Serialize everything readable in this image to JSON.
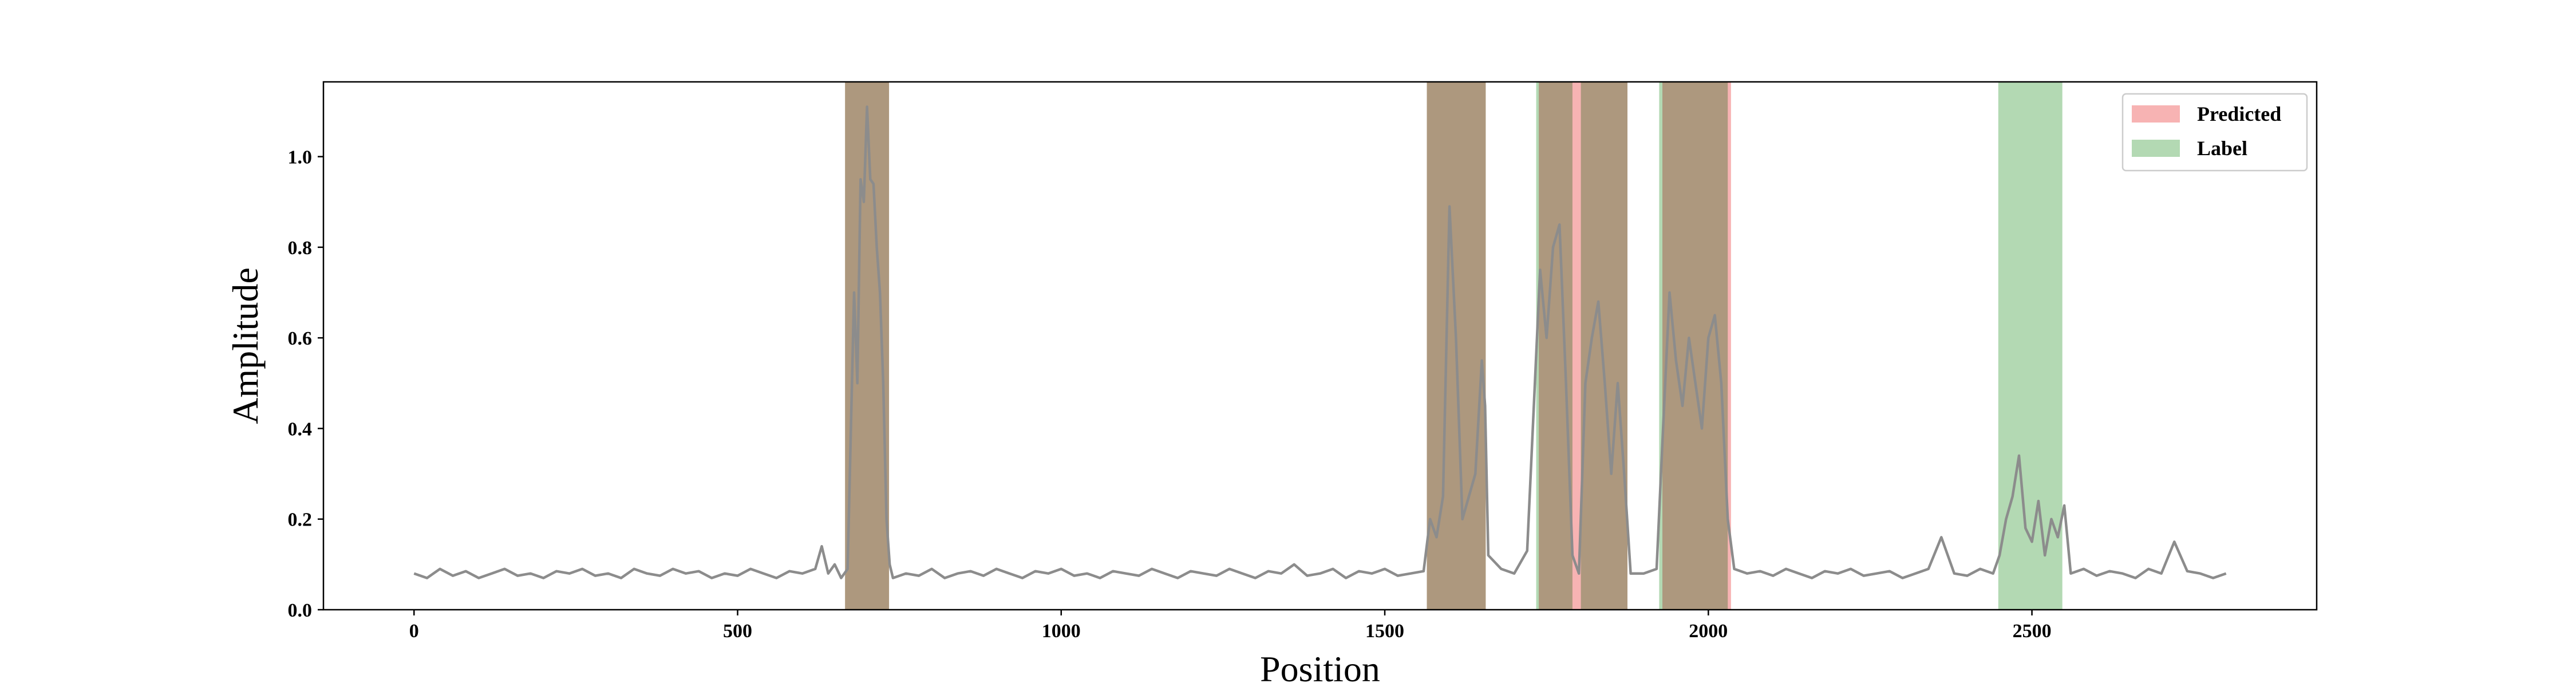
{
  "chart_data": {
    "type": "line",
    "xlabel": "Position",
    "ylabel": "Amplitude",
    "xlim": [
      -140,
      2940
    ],
    "ylim": [
      0,
      1.165
    ],
    "xticks": [
      0,
      500,
      1000,
      1500,
      2000,
      2500
    ],
    "yticks": [
      {
        "value": 0,
        "label": "0.0"
      },
      0.2,
      0.4,
      0.6,
      0.8,
      {
        "value": 1,
        "label": "1.0"
      }
    ],
    "legend": "upper right",
    "regions": [
      {
        "name": "Predicted",
        "color": "#f7b3b3",
        "spans": [
          [
            666,
            734
          ],
          [
            1565,
            1656
          ],
          [
            1738,
            1875
          ],
          [
            1929,
            2035
          ]
        ]
      },
      {
        "name": "Label",
        "color": "#b3d9b3",
        "spans": [
          [
            666,
            734
          ],
          [
            1565,
            1656
          ],
          [
            1734,
            1790
          ],
          [
            1803,
            1875
          ],
          [
            1924,
            2030
          ],
          [
            2448,
            2547
          ]
        ]
      }
    ],
    "series": [
      {
        "color": "#8c8c8c",
        "x": [
          0,
          20,
          40,
          60,
          80,
          100,
          120,
          140,
          160,
          180,
          200,
          220,
          240,
          260,
          280,
          300,
          320,
          340,
          360,
          380,
          400,
          420,
          440,
          460,
          480,
          500,
          520,
          540,
          560,
          580,
          600,
          620,
          630,
          640,
          650,
          660,
          670,
          680,
          685,
          690,
          695,
          700,
          705,
          710,
          715,
          720,
          725,
          730,
          735,
          740,
          760,
          780,
          800,
          820,
          840,
          860,
          880,
          900,
          920,
          940,
          960,
          980,
          1000,
          1020,
          1040,
          1060,
          1080,
          1100,
          1120,
          1140,
          1160,
          1180,
          1200,
          1220,
          1240,
          1260,
          1280,
          1300,
          1320,
          1340,
          1360,
          1380,
          1400,
          1420,
          1440,
          1460,
          1480,
          1500,
          1520,
          1540,
          1560,
          1570,
          1580,
          1590,
          1600,
          1610,
          1620,
          1630,
          1640,
          1650,
          1655,
          1660,
          1680,
          1700,
          1720,
          1740,
          1750,
          1760,
          1770,
          1780,
          1790,
          1800,
          1810,
          1820,
          1830,
          1840,
          1850,
          1860,
          1870,
          1880,
          1900,
          1920,
          1930,
          1940,
          1950,
          1960,
          1970,
          1980,
          1990,
          2000,
          2010,
          2020,
          2030,
          2040,
          2060,
          2080,
          2100,
          2120,
          2140,
          2160,
          2180,
          2200,
          2220,
          2240,
          2260,
          2280,
          2300,
          2320,
          2340,
          2360,
          2380,
          2400,
          2420,
          2440,
          2450,
          2460,
          2470,
          2480,
          2490,
          2500,
          2510,
          2520,
          2530,
          2540,
          2550,
          2560,
          2580,
          2600,
          2620,
          2640,
          2660,
          2680,
          2700,
          2720,
          2740,
          2760,
          2780,
          2800
        ],
        "values": [
          0.08,
          0.07,
          0.09,
          0.075,
          0.085,
          0.07,
          0.08,
          0.09,
          0.075,
          0.08,
          0.07,
          0.085,
          0.08,
          0.09,
          0.075,
          0.08,
          0.07,
          0.09,
          0.08,
          0.075,
          0.09,
          0.08,
          0.085,
          0.07,
          0.08,
          0.075,
          0.09,
          0.08,
          0.07,
          0.085,
          0.08,
          0.09,
          0.14,
          0.08,
          0.1,
          0.07,
          0.09,
          0.7,
          0.5,
          0.95,
          0.9,
          1.11,
          0.95,
          0.94,
          0.8,
          0.7,
          0.5,
          0.2,
          0.1,
          0.07,
          0.08,
          0.075,
          0.09,
          0.07,
          0.08,
          0.085,
          0.075,
          0.09,
          0.08,
          0.07,
          0.085,
          0.08,
          0.09,
          0.075,
          0.08,
          0.07,
          0.085,
          0.08,
          0.075,
          0.09,
          0.08,
          0.07,
          0.085,
          0.08,
          0.075,
          0.09,
          0.08,
          0.07,
          0.085,
          0.08,
          0.1,
          0.075,
          0.08,
          0.09,
          0.07,
          0.085,
          0.08,
          0.09,
          0.075,
          0.08,
          0.085,
          0.2,
          0.16,
          0.25,
          0.89,
          0.6,
          0.2,
          0.25,
          0.3,
          0.55,
          0.45,
          0.12,
          0.09,
          0.08,
          0.13,
          0.75,
          0.6,
          0.8,
          0.85,
          0.5,
          0.12,
          0.08,
          0.5,
          0.6,
          0.68,
          0.5,
          0.3,
          0.5,
          0.3,
          0.08,
          0.08,
          0.09,
          0.4,
          0.7,
          0.55,
          0.45,
          0.6,
          0.5,
          0.4,
          0.6,
          0.65,
          0.5,
          0.2,
          0.09,
          0.08,
          0.085,
          0.075,
          0.09,
          0.08,
          0.07,
          0.085,
          0.08,
          0.09,
          0.075,
          0.08,
          0.085,
          0.07,
          0.08,
          0.09,
          0.16,
          0.08,
          0.075,
          0.09,
          0.08,
          0.12,
          0.2,
          0.25,
          0.34,
          0.18,
          0.15,
          0.24,
          0.12,
          0.2,
          0.16,
          0.23,
          0.08,
          0.09,
          0.075,
          0.085,
          0.08,
          0.07,
          0.09,
          0.08,
          0.15,
          0.085,
          0.08,
          0.07,
          0.08
        ]
      }
    ]
  }
}
